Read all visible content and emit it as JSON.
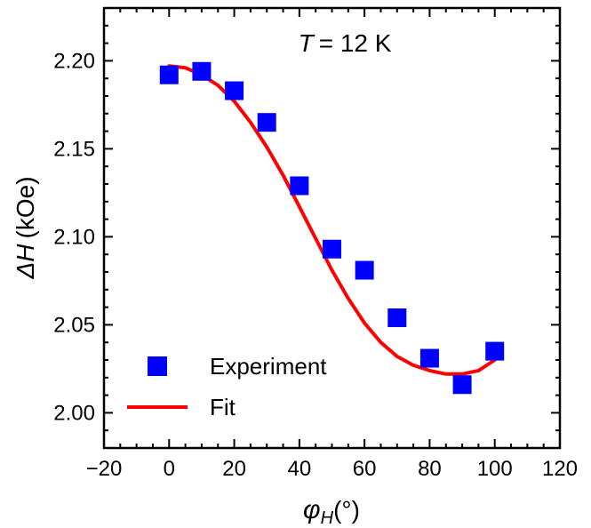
{
  "chart_data": {
    "type": "scatter",
    "xlabel_symbol": "φ",
    "xlabel_sub": "H",
    "xlabel_unit": "(°)",
    "ylabel_symbol": "ΔH",
    "ylabel_unit": "(kOe)",
    "annotation_symbol": "T",
    "annotation_value": "= 12 K",
    "xlim": [
      -20,
      120
    ],
    "ylim": [
      1.98,
      2.23
    ],
    "x_ticks": [
      -20,
      0,
      20,
      40,
      60,
      80,
      100,
      120
    ],
    "x_tick_labels": [
      "−20",
      "0",
      "20",
      "40",
      "60",
      "80",
      "100",
      "120"
    ],
    "y_ticks": [
      2.0,
      2.05,
      2.1,
      2.15,
      2.2
    ],
    "y_tick_labels": [
      "2.00",
      "2.05",
      "2.10",
      "2.15",
      "2.20"
    ],
    "legend_position": "lower-left",
    "series": [
      {
        "name": "Experiment",
        "style": "square-markers",
        "color": "#0000ff",
        "x": [
          0,
          10,
          20,
          30,
          40,
          50,
          60,
          70,
          80,
          90,
          100
        ],
        "y": [
          2.192,
          2.194,
          2.183,
          2.165,
          2.129,
          2.093,
          2.081,
          2.054,
          2.031,
          2.016,
          2.035
        ]
      },
      {
        "name": "Fit",
        "style": "line",
        "color": "#ff0000",
        "x": [
          0,
          5,
          10,
          15,
          20,
          25,
          30,
          35,
          40,
          45,
          50,
          55,
          60,
          65,
          70,
          75,
          80,
          85,
          90,
          95,
          100
        ],
        "y": [
          2.197,
          2.196,
          2.192,
          2.186,
          2.177,
          2.165,
          2.151,
          2.135,
          2.117,
          2.099,
          2.081,
          2.065,
          2.051,
          2.04,
          2.032,
          2.027,
          2.024,
          2.022,
          2.022,
          2.024,
          2.03
        ]
      }
    ]
  }
}
